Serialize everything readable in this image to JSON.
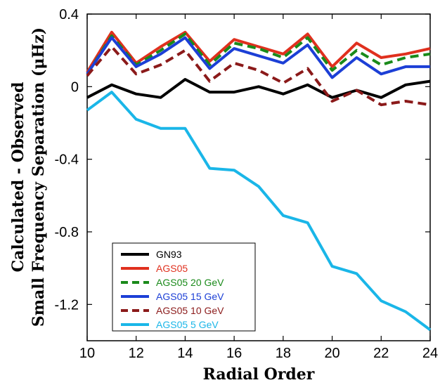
{
  "chart_data": {
    "type": "line",
    "xlabel": "Radial Order",
    "ylabel_line1": "Calculated - Observed",
    "ylabel_line2": "Small Frequency Separation (μHz)",
    "xlim": [
      10,
      24
    ],
    "ylim": [
      -1.4,
      0.4
    ],
    "x_ticks": [
      10,
      12,
      14,
      16,
      18,
      20,
      22,
      24
    ],
    "y_ticks": [
      0.4,
      0,
      -0.4,
      -0.8,
      -1.2
    ],
    "y_tick_labels": [
      "0.4",
      "0",
      "-0.4",
      "-0.8",
      "-1.2"
    ],
    "grid": false,
    "legend_position": "bottom-left",
    "x": [
      10,
      11,
      12,
      13,
      14,
      15,
      16,
      17,
      18,
      19,
      20,
      21,
      22,
      23,
      24
    ],
    "series": [
      {
        "name": "GN93",
        "color": "#000000",
        "dash": "solid",
        "values": [
          -0.06,
          0.01,
          -0.04,
          -0.06,
          0.04,
          -0.03,
          -0.03,
          0.0,
          -0.04,
          0.01,
          -0.06,
          -0.02,
          -0.06,
          0.01,
          0.03
        ]
      },
      {
        "name": "AGS05",
        "color": "#e0301e",
        "dash": "solid",
        "values": [
          0.08,
          0.3,
          0.13,
          0.22,
          0.3,
          0.14,
          0.26,
          0.22,
          0.18,
          0.29,
          0.11,
          0.24,
          0.16,
          0.18,
          0.21
        ]
      },
      {
        "name": "AGS05 20 GeV",
        "color": "#1a8a1a",
        "dash": "dashed",
        "values": [
          0.07,
          0.28,
          0.12,
          0.2,
          0.29,
          0.12,
          0.24,
          0.21,
          0.16,
          0.27,
          0.09,
          0.2,
          0.12,
          0.16,
          0.18
        ]
      },
      {
        "name": "AGS05 15 GeV",
        "color": "#1c3fd6",
        "dash": "solid",
        "values": [
          0.07,
          0.27,
          0.11,
          0.18,
          0.27,
          0.1,
          0.21,
          0.17,
          0.13,
          0.23,
          0.05,
          0.16,
          0.07,
          0.11,
          0.11
        ]
      },
      {
        "name": "AGS05 10 GeV",
        "color": "#8b1a1a",
        "dash": "dashed",
        "values": [
          0.06,
          0.22,
          0.07,
          0.12,
          0.2,
          0.03,
          0.13,
          0.09,
          0.02,
          0.1,
          -0.08,
          -0.02,
          -0.1,
          -0.08,
          -0.1
        ]
      },
      {
        "name": "AGS05 5 GeV",
        "color": "#1ab6e8",
        "dash": "solid",
        "values": [
          -0.13,
          -0.03,
          -0.18,
          -0.23,
          -0.23,
          -0.45,
          -0.46,
          -0.55,
          -0.71,
          -0.75,
          -0.99,
          -1.03,
          -1.18,
          -1.24,
          -1.34
        ]
      }
    ]
  }
}
